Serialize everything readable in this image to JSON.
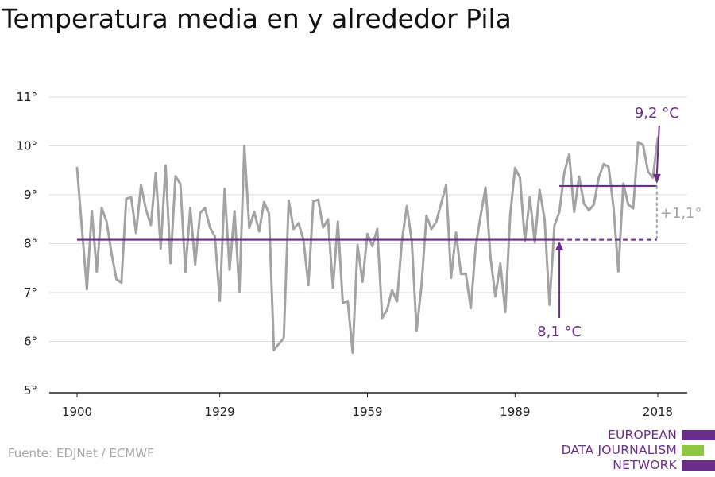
{
  "title": "Temperatura media en y alrededor Pila",
  "source": "Fuente: EDJNet / ECMWF",
  "logo": {
    "lines": [
      "EUROPEAN",
      "DATA JOURNALISM",
      "NETWORK"
    ],
    "colors": [
      "#6b2d8a",
      "#8dc63f",
      "#6b2d8a"
    ]
  },
  "colors": {
    "series": "#a3a3a3",
    "reference": "#6b2d8a",
    "difference": "#a3a3a3",
    "grid": "#dedede",
    "axis": "#222222",
    "text": "#222222"
  },
  "chart_data": {
    "type": "line",
    "title": "Temperatura media en y alrededor Pila",
    "xlabel": "",
    "ylabel": "",
    "xlim": [
      1900,
      2018
    ],
    "ylim": [
      5,
      11
    ],
    "xticks": [
      1900,
      1929,
      1959,
      1989,
      2018
    ],
    "yticks": [
      5,
      6,
      7,
      8,
      9,
      10,
      11
    ],
    "ytick_suffix": "°",
    "grid": true,
    "series": [
      {
        "x": [
          1900,
          1901,
          1902,
          1903,
          1904,
          1905,
          1906,
          1907,
          1908,
          1909,
          1910,
          1911,
          1912,
          1913,
          1914,
          1915,
          1916,
          1917,
          1918,
          1919,
          1920,
          1921,
          1922,
          1923,
          1924,
          1925,
          1926,
          1927,
          1928,
          1929,
          1930,
          1931,
          1932,
          1933,
          1934,
          1935,
          1936,
          1937,
          1938,
          1939,
          1940,
          1941,
          1942,
          1943,
          1944,
          1945,
          1946,
          1947,
          1948,
          1949,
          1950,
          1951,
          1952,
          1953,
          1954,
          1955,
          1956,
          1957,
          1958,
          1959,
          1960,
          1961,
          1962,
          1963,
          1964,
          1965,
          1966,
          1967,
          1968,
          1969,
          1970,
          1971,
          1972,
          1973,
          1974,
          1975,
          1976,
          1977,
          1978,
          1979,
          1980,
          1981,
          1982,
          1983,
          1984,
          1985,
          1986,
          1987,
          1988,
          1989,
          1990,
          1991,
          1992,
          1993,
          1994,
          1995,
          1996,
          1997,
          1998,
          1999,
          2000,
          2001,
          2002,
          2003,
          2004,
          2005,
          2006,
          2007,
          2008,
          2009,
          2010,
          2011,
          2012,
          2013,
          2014,
          2015,
          2016,
          2017,
          2018
        ],
        "values": [
          9.55,
          8.3,
          7.07,
          8.67,
          7.43,
          8.73,
          8.45,
          7.8,
          7.27,
          7.2,
          8.92,
          8.95,
          8.22,
          9.2,
          8.7,
          8.38,
          9.45,
          7.9,
          9.6,
          7.6,
          9.38,
          9.22,
          7.42,
          8.73,
          7.57,
          8.63,
          8.73,
          8.33,
          8.15,
          6.83,
          9.12,
          7.47,
          8.66,
          7.02,
          10.0,
          8.32,
          8.65,
          8.25,
          8.85,
          8.62,
          5.82,
          5.95,
          6.07,
          8.88,
          8.3,
          8.42,
          8.08,
          7.15,
          8.87,
          8.9,
          8.33,
          8.5,
          7.1,
          8.45,
          6.78,
          6.83,
          5.77,
          7.97,
          7.22,
          8.2,
          7.95,
          8.3,
          6.48,
          6.65,
          7.05,
          6.82,
          8.05,
          8.77,
          8.05,
          6.22,
          7.15,
          8.57,
          8.3,
          8.45,
          8.83,
          9.2,
          7.3,
          8.23,
          7.38,
          7.38,
          6.68,
          7.95,
          8.57,
          9.15,
          7.72,
          6.92,
          7.6,
          6.6,
          8.58,
          9.55,
          9.35,
          8.05,
          8.95,
          8.03,
          9.1,
          8.5,
          6.75,
          8.37,
          8.65,
          9.45,
          9.83,
          8.65,
          9.37,
          8.82,
          8.68,
          8.8,
          9.35,
          9.63,
          9.57,
          8.75,
          7.43,
          9.23,
          8.8,
          8.72,
          10.08,
          10.02,
          9.48,
          9.35,
          10.17
        ]
      }
    ],
    "reference_lines": [
      {
        "label": "8,1 °C",
        "value": 8.08,
        "from": 1900,
        "to": 1998,
        "dashed_to": 2017
      },
      {
        "label": "9,2 °C",
        "value": 9.18,
        "from": 1998,
        "to": 2017
      }
    ],
    "difference_label": "+1,1°"
  }
}
